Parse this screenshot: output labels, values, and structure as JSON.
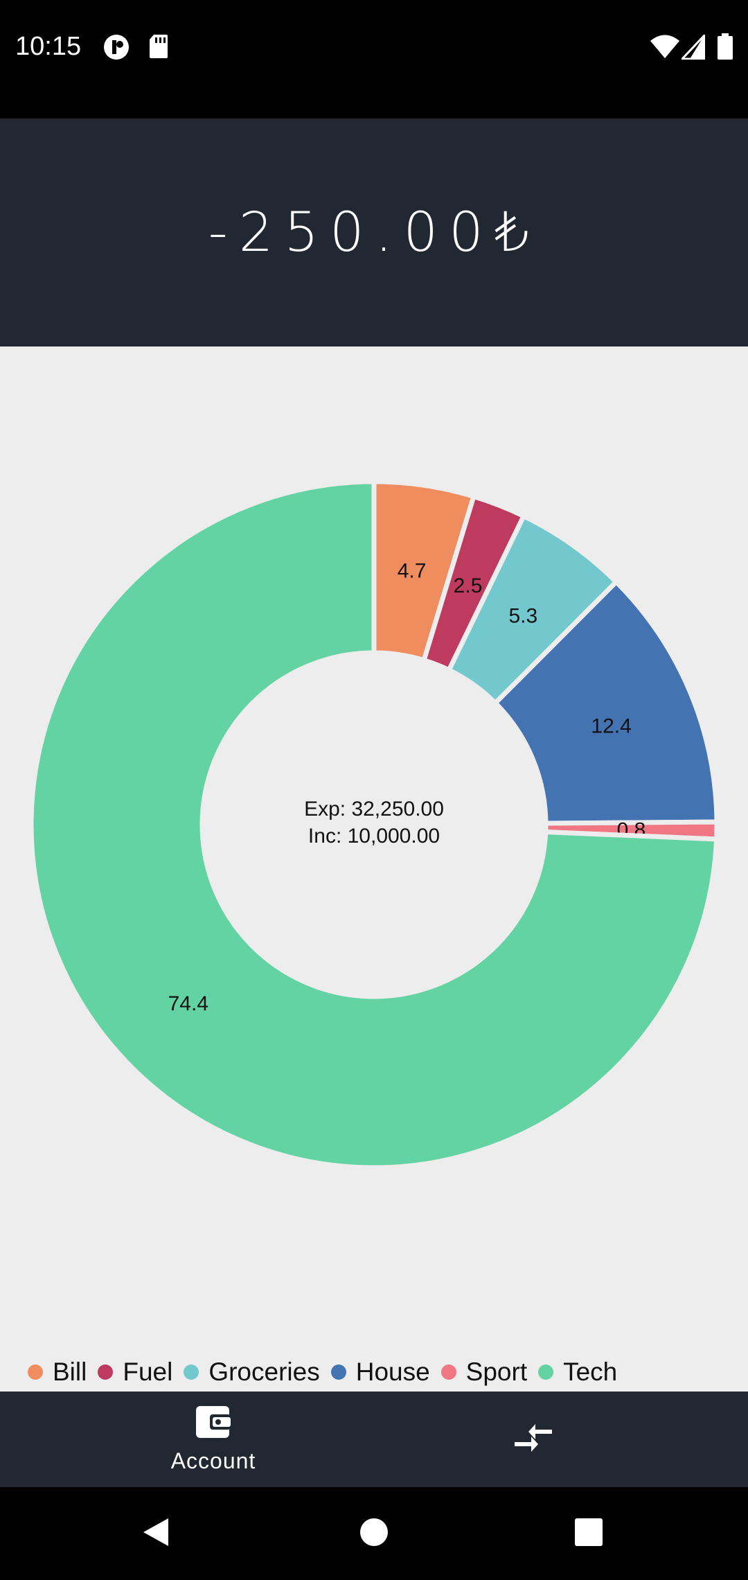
{
  "status_bar": {
    "time": "10:15",
    "left_icons": [
      "circle-badge-icon",
      "sd-card-icon"
    ],
    "right_icons": [
      "wifi-icon",
      "signal-icon",
      "battery-icon"
    ]
  },
  "header": {
    "balance": "-250.00₺"
  },
  "chart_data": {
    "type": "pie",
    "donut": true,
    "center_text": [
      "Exp: 32,250.00",
      "Inc: 10,000.00"
    ],
    "slices": [
      {
        "label": "Bill",
        "value": 4.7,
        "color": "#F08D5E"
      },
      {
        "label": "Fuel",
        "value": 2.5,
        "color": "#BE3A5E"
      },
      {
        "label": "Groceries",
        "value": 5.3,
        "color": "#72C8CD"
      },
      {
        "label": "House",
        "value": 12.4,
        "color": "#4373B1"
      },
      {
        "label": "Sport",
        "value": 0.8,
        "color": "#F07683"
      },
      {
        "label": "Tech",
        "value": 74.4,
        "color": "#63D3A3"
      }
    ],
    "legend_position": "bottom-left"
  },
  "bottom_nav": {
    "account_label": "Account",
    "account_icon": "wallet-icon",
    "transfer_icon": "transfer-arrows-icon"
  },
  "system_nav": {
    "icons": [
      "back-icon",
      "home-icon",
      "recents-icon"
    ]
  }
}
